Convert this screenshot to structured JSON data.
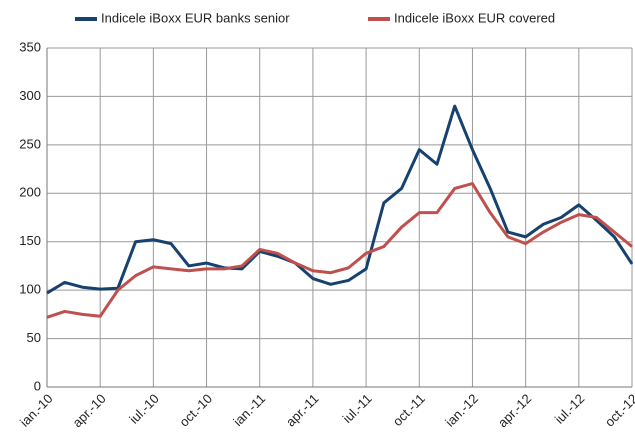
{
  "chart_data": {
    "type": "line",
    "categories": [
      "ian.-10",
      null,
      null,
      "apr.-10",
      null,
      null,
      "iul.-10",
      null,
      null,
      "oct.-10",
      null,
      null,
      "ian.-11",
      null,
      null,
      "apr.-11",
      null,
      null,
      "iul.-11",
      null,
      null,
      "oct.-11",
      null,
      null,
      "ian.-12",
      null,
      null,
      "apr.-12",
      null,
      null,
      "iul.-12",
      null,
      null,
      "oct.-12"
    ],
    "series": [
      {
        "name": "Indicele iBoxx EUR banks senior",
        "color": "#17416f",
        "values": [
          97,
          108,
          103,
          101,
          102,
          150,
          152,
          148,
          125,
          128,
          123,
          122,
          140,
          135,
          128,
          112,
          106,
          110,
          122,
          190,
          205,
          245,
          230,
          290,
          245,
          205,
          160,
          155,
          168,
          175,
          188,
          172,
          155,
          127
        ]
      },
      {
        "name": "Indicele iBoxx EUR covered",
        "color": "#c0504d",
        "values": [
          72,
          78,
          75,
          73,
          100,
          115,
          124,
          122,
          120,
          122,
          122,
          125,
          142,
          138,
          128,
          120,
          118,
          123,
          138,
          145,
          165,
          180,
          180,
          205,
          210,
          180,
          155,
          148,
          160,
          170,
          178,
          175,
          160,
          145
        ]
      }
    ],
    "ylim": [
      0,
      350
    ],
    "yticks": [
      0,
      50,
      100,
      150,
      200,
      250,
      300,
      350
    ],
    "grid": true
  }
}
